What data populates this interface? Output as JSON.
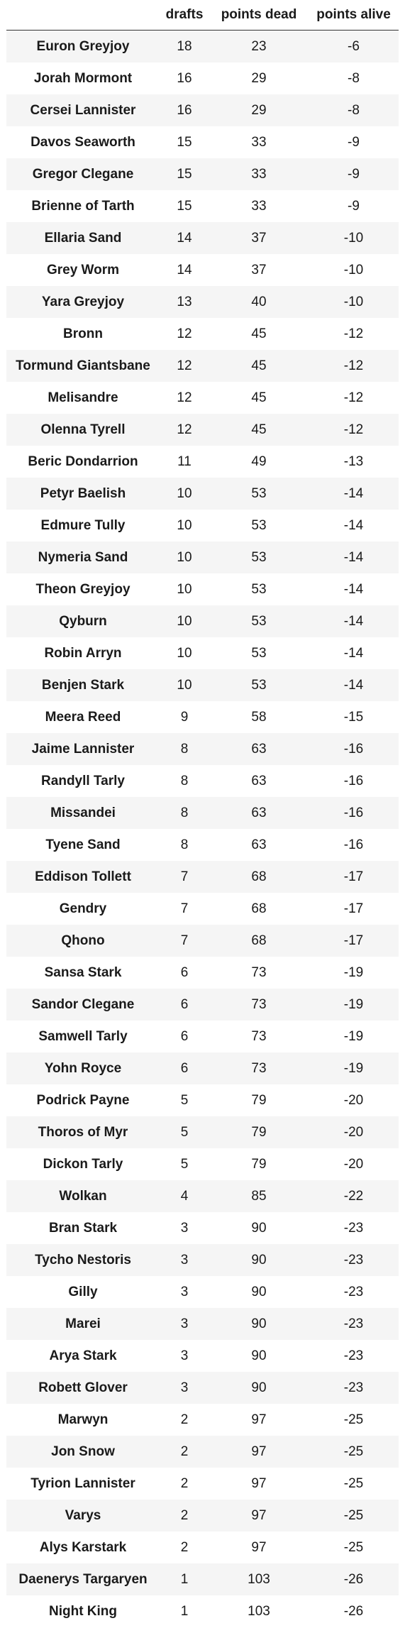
{
  "header": {
    "name": "",
    "drafts": "drafts",
    "points_dead": "points dead",
    "points_alive": "points alive"
  },
  "rows": [
    {
      "name": "Euron Greyjoy",
      "drafts": "18",
      "points_dead": "23",
      "points_alive": "-6"
    },
    {
      "name": "Jorah Mormont",
      "drafts": "16",
      "points_dead": "29",
      "points_alive": "-8"
    },
    {
      "name": "Cersei Lannister",
      "drafts": "16",
      "points_dead": "29",
      "points_alive": "-8"
    },
    {
      "name": "Davos Seaworth",
      "drafts": "15",
      "points_dead": "33",
      "points_alive": "-9"
    },
    {
      "name": "Gregor Clegane",
      "drafts": "15",
      "points_dead": "33",
      "points_alive": "-9"
    },
    {
      "name": "Brienne of Tarth",
      "drafts": "15",
      "points_dead": "33",
      "points_alive": "-9"
    },
    {
      "name": "Ellaria Sand",
      "drafts": "14",
      "points_dead": "37",
      "points_alive": "-10"
    },
    {
      "name": "Grey Worm",
      "drafts": "14",
      "points_dead": "37",
      "points_alive": "-10"
    },
    {
      "name": "Yara Greyjoy",
      "drafts": "13",
      "points_dead": "40",
      "points_alive": "-10"
    },
    {
      "name": "Bronn",
      "drafts": "12",
      "points_dead": "45",
      "points_alive": "-12"
    },
    {
      "name": "Tormund Giantsbane",
      "drafts": "12",
      "points_dead": "45",
      "points_alive": "-12"
    },
    {
      "name": "Melisandre",
      "drafts": "12",
      "points_dead": "45",
      "points_alive": "-12"
    },
    {
      "name": "Olenna Tyrell",
      "drafts": "12",
      "points_dead": "45",
      "points_alive": "-12"
    },
    {
      "name": "Beric Dondarrion",
      "drafts": "11",
      "points_dead": "49",
      "points_alive": "-13"
    },
    {
      "name": "Petyr Baelish",
      "drafts": "10",
      "points_dead": "53",
      "points_alive": "-14"
    },
    {
      "name": "Edmure Tully",
      "drafts": "10",
      "points_dead": "53",
      "points_alive": "-14"
    },
    {
      "name": "Nymeria Sand",
      "drafts": "10",
      "points_dead": "53",
      "points_alive": "-14"
    },
    {
      "name": "Theon Greyjoy",
      "drafts": "10",
      "points_dead": "53",
      "points_alive": "-14"
    },
    {
      "name": "Qyburn",
      "drafts": "10",
      "points_dead": "53",
      "points_alive": "-14"
    },
    {
      "name": "Robin Arryn",
      "drafts": "10",
      "points_dead": "53",
      "points_alive": "-14"
    },
    {
      "name": "Benjen Stark",
      "drafts": "10",
      "points_dead": "53",
      "points_alive": "-14"
    },
    {
      "name": "Meera Reed",
      "drafts": "9",
      "points_dead": "58",
      "points_alive": "-15"
    },
    {
      "name": "Jaime Lannister",
      "drafts": "8",
      "points_dead": "63",
      "points_alive": "-16"
    },
    {
      "name": "Randyll Tarly",
      "drafts": "8",
      "points_dead": "63",
      "points_alive": "-16"
    },
    {
      "name": "Missandei",
      "drafts": "8",
      "points_dead": "63",
      "points_alive": "-16"
    },
    {
      "name": "Tyene Sand",
      "drafts": "8",
      "points_dead": "63",
      "points_alive": "-16"
    },
    {
      "name": "Eddison Tollett",
      "drafts": "7",
      "points_dead": "68",
      "points_alive": "-17"
    },
    {
      "name": "Gendry",
      "drafts": "7",
      "points_dead": "68",
      "points_alive": "-17"
    },
    {
      "name": "Qhono",
      "drafts": "7",
      "points_dead": "68",
      "points_alive": "-17"
    },
    {
      "name": "Sansa Stark",
      "drafts": "6",
      "points_dead": "73",
      "points_alive": "-19"
    },
    {
      "name": "Sandor Clegane",
      "drafts": "6",
      "points_dead": "73",
      "points_alive": "-19"
    },
    {
      "name": "Samwell Tarly",
      "drafts": "6",
      "points_dead": "73",
      "points_alive": "-19"
    },
    {
      "name": "Yohn Royce",
      "drafts": "6",
      "points_dead": "73",
      "points_alive": "-19"
    },
    {
      "name": "Podrick Payne",
      "drafts": "5",
      "points_dead": "79",
      "points_alive": "-20"
    },
    {
      "name": "Thoros of Myr",
      "drafts": "5",
      "points_dead": "79",
      "points_alive": "-20"
    },
    {
      "name": "Dickon Tarly",
      "drafts": "5",
      "points_dead": "79",
      "points_alive": "-20"
    },
    {
      "name": "Wolkan",
      "drafts": "4",
      "points_dead": "85",
      "points_alive": "-22"
    },
    {
      "name": "Bran Stark",
      "drafts": "3",
      "points_dead": "90",
      "points_alive": "-23"
    },
    {
      "name": "Tycho Nestoris",
      "drafts": "3",
      "points_dead": "90",
      "points_alive": "-23"
    },
    {
      "name": "Gilly",
      "drafts": "3",
      "points_dead": "90",
      "points_alive": "-23"
    },
    {
      "name": "Marei",
      "drafts": "3",
      "points_dead": "90",
      "points_alive": "-23"
    },
    {
      "name": "Arya Stark",
      "drafts": "3",
      "points_dead": "90",
      "points_alive": "-23"
    },
    {
      "name": "Robett Glover",
      "drafts": "3",
      "points_dead": "90",
      "points_alive": "-23"
    },
    {
      "name": "Marwyn",
      "drafts": "2",
      "points_dead": "97",
      "points_alive": "-25"
    },
    {
      "name": "Jon Snow",
      "drafts": "2",
      "points_dead": "97",
      "points_alive": "-25"
    },
    {
      "name": "Tyrion Lannister",
      "drafts": "2",
      "points_dead": "97",
      "points_alive": "-25"
    },
    {
      "name": "Varys",
      "drafts": "2",
      "points_dead": "97",
      "points_alive": "-25"
    },
    {
      "name": "Alys Karstark",
      "drafts": "2",
      "points_dead": "97",
      "points_alive": "-25"
    },
    {
      "name": "Daenerys Targaryen",
      "drafts": "1",
      "points_dead": "103",
      "points_alive": "-26"
    },
    {
      "name": "Night King",
      "drafts": "1",
      "points_dead": "103",
      "points_alive": "-26"
    }
  ]
}
